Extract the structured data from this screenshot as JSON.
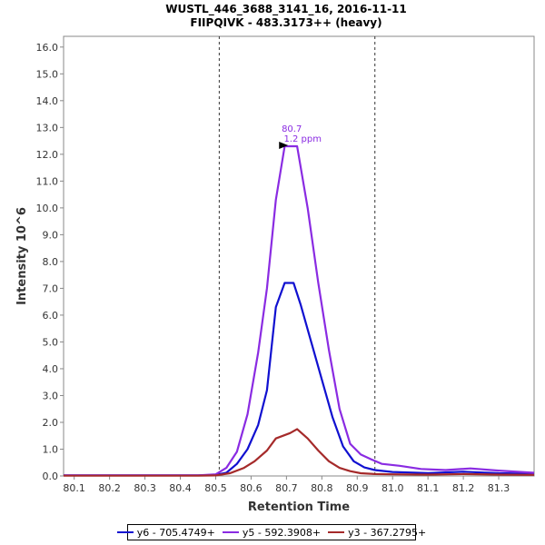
{
  "chart_data": {
    "type": "line",
    "title": "WUSTL_446_3688_3141_16, 2016-11-11",
    "subtitle": "FIIPQIVK - 483.3173++ (heavy)",
    "xlabel": "Retention Time",
    "ylabel": "Intensity 10^6",
    "xlim": [
      80.07,
      81.4
    ],
    "ylim": [
      0,
      16.4
    ],
    "xticks": [
      "80.1",
      "80.2",
      "80.3",
      "80.4",
      "80.5",
      "80.6",
      "80.7",
      "80.8",
      "80.9",
      "81.0",
      "81.1",
      "81.2",
      "81.3"
    ],
    "yticks": [
      "0.0",
      "1.0",
      "2.0",
      "3.0",
      "4.0",
      "5.0",
      "6.0",
      "7.0",
      "8.0",
      "9.0",
      "10.0",
      "11.0",
      "12.0",
      "13.0",
      "14.0",
      "15.0",
      "16.0"
    ],
    "boundaries": [
      80.51,
      80.95
    ],
    "annotation": {
      "x": 80.715,
      "y": 12.3,
      "line1": "80.7",
      "line2": "1.2 ppm"
    },
    "series": [
      {
        "name": "y6 - 705.4749+",
        "color": "#1010d0",
        "x": [
          80.07,
          80.34,
          80.45,
          80.5,
          80.53,
          80.56,
          80.59,
          80.62,
          80.645,
          80.67,
          80.695,
          80.72,
          80.74,
          80.77,
          80.8,
          80.83,
          80.86,
          80.89,
          80.92,
          80.95,
          81.0,
          81.1,
          81.2,
          81.3,
          81.4
        ],
        "y": [
          0.02,
          0.02,
          0.02,
          0.04,
          0.12,
          0.45,
          1.0,
          1.9,
          3.2,
          6.3,
          7.2,
          7.2,
          6.4,
          5.0,
          3.6,
          2.2,
          1.1,
          0.55,
          0.32,
          0.22,
          0.15,
          0.11,
          0.16,
          0.1,
          0.08
        ]
      },
      {
        "name": "y5 - 592.3908+",
        "color": "#8a2be2",
        "x": [
          80.07,
          80.34,
          80.45,
          80.5,
          80.53,
          80.56,
          80.59,
          80.62,
          80.645,
          80.67,
          80.695,
          80.73,
          80.76,
          80.79,
          80.82,
          80.85,
          80.88,
          80.91,
          80.94,
          80.97,
          81.02,
          81.08,
          81.15,
          81.22,
          81.3,
          81.4
        ],
        "y": [
          0.02,
          0.02,
          0.02,
          0.06,
          0.3,
          0.9,
          2.3,
          4.6,
          7.0,
          10.3,
          12.3,
          12.3,
          10.0,
          7.2,
          4.7,
          2.5,
          1.2,
          0.8,
          0.62,
          0.45,
          0.38,
          0.26,
          0.22,
          0.28,
          0.2,
          0.12
        ]
      },
      {
        "name": "y3 - 367.2795+",
        "color": "#a52a2a",
        "x": [
          80.07,
          80.35,
          80.45,
          80.5,
          80.54,
          80.58,
          80.61,
          80.645,
          80.67,
          80.71,
          80.73,
          80.76,
          80.79,
          80.82,
          80.85,
          80.88,
          80.91,
          80.95,
          81.0,
          81.1,
          81.2,
          81.3,
          81.4
        ],
        "y": [
          0.01,
          0.01,
          0.01,
          0.02,
          0.1,
          0.3,
          0.55,
          0.95,
          1.4,
          1.6,
          1.75,
          1.4,
          0.95,
          0.55,
          0.3,
          0.18,
          0.1,
          0.07,
          0.06,
          0.05,
          0.07,
          0.05,
          0.04
        ]
      }
    ]
  }
}
